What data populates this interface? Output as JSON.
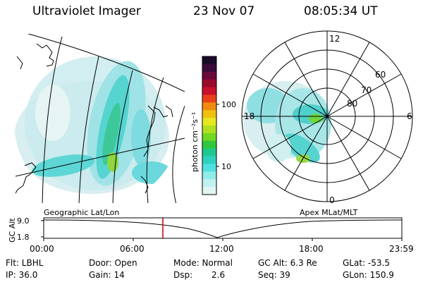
{
  "header": {
    "instrument": "Ultraviolet Imager",
    "date": "23 Nov 07",
    "time": "08:05:34 UT"
  },
  "colorbar": {
    "unit_label": "photon cm⁻²s⁻¹",
    "ticks": [
      "100",
      "10"
    ],
    "colors_top_to_bottom": [
      "#1a0a2a",
      "#3a0a3a",
      "#6a0a3a",
      "#9a0a2a",
      "#c8102a",
      "#e8401a",
      "#f08a10",
      "#f0c010",
      "#e8e820",
      "#b0e020",
      "#70d820",
      "#30c840",
      "#20c890",
      "#30d0c0",
      "#50e0e0",
      "#90ece8",
      "#c0f0f0",
      "#e0f4f4"
    ]
  },
  "maps": {
    "left_caption": "Geographic Lat/Lon",
    "right_caption": "Apex MLat/MLT",
    "polar_labels": {
      "mlt_12": "12",
      "mlt_18": "18",
      "mlt_6": "6",
      "mlt_0": "0",
      "lat_60": "60",
      "lat_70": "70",
      "lat_80": "80"
    }
  },
  "timeline": {
    "axis_label": "GC Alt",
    "y_ticks": [
      "9.0",
      "1.8"
    ],
    "x_ticks": [
      "00:00",
      "06:00",
      "12:00",
      "18:00",
      "23:59"
    ],
    "marker_time": "08:05:34",
    "marker_color": "#cc0000"
  },
  "info": {
    "flt": "Flt: LBHL",
    "door": "Door: Open",
    "mode": "Mode: Normal",
    "gc_alt": "GC Alt: 6.3 Re",
    "glat": "GLat: -53.5",
    "ip": "IP: 36.0",
    "gain": "Gain: 14",
    "dsp_label": "Dsp:",
    "dsp_value": "2.6",
    "seq": "Seq: 39",
    "glon": "GLon: 150.9"
  }
}
